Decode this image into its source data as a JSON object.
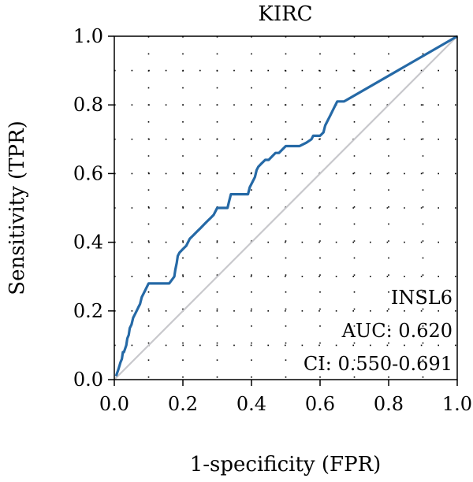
{
  "chart_data": {
    "type": "line",
    "title": "KIRC",
    "xlabel": "1-specificity (FPR)",
    "ylabel": "Sensitivity (TPR)",
    "xlim": [
      0,
      1
    ],
    "ylim": [
      0,
      1
    ],
    "xticks": [
      "0.0",
      "0.2",
      "0.4",
      "0.6",
      "0.8",
      "1.0"
    ],
    "yticks": [
      "0.0",
      "0.2",
      "0.4",
      "0.6",
      "0.8",
      "1.0"
    ],
    "grid": "dotted",
    "annotations": [
      "INSL6",
      "AUC: 0.620",
      "CI: 0.550-0.691"
    ],
    "colors": {
      "roc": "#2569a6",
      "diagonal": "#c8c8cc"
    },
    "series": [
      {
        "x": [
          0.005,
          0.012,
          0.018,
          0.022,
          0.025,
          0.028,
          0.035,
          0.038,
          0.042,
          0.045,
          0.05,
          0.055,
          0.06,
          0.065,
          0.07,
          0.075,
          0.08,
          0.085,
          0.09,
          0.095,
          0.1,
          0.105,
          0.11,
          0.13,
          0.16,
          0.175,
          0.178,
          0.182,
          0.185,
          0.19,
          0.2,
          0.21,
          0.22,
          0.23,
          0.24,
          0.25,
          0.26,
          0.27,
          0.28,
          0.29,
          0.3,
          0.31,
          0.33,
          0.335,
          0.34,
          0.35,
          0.37,
          0.39,
          0.395,
          0.4,
          0.41,
          0.415,
          0.42,
          0.43,
          0.44,
          0.45,
          0.46,
          0.47,
          0.48,
          0.49,
          0.5,
          0.52,
          0.54,
          0.56,
          0.575,
          0.58,
          0.6,
          0.61,
          0.615,
          0.62,
          0.63,
          0.64,
          0.645,
          0.65,
          0.67,
          1.0
        ],
        "y": [
          0.01,
          0.03,
          0.05,
          0.06,
          0.08,
          0.08,
          0.1,
          0.12,
          0.13,
          0.15,
          0.16,
          0.18,
          0.19,
          0.2,
          0.21,
          0.22,
          0.24,
          0.25,
          0.26,
          0.27,
          0.28,
          0.28,
          0.28,
          0.28,
          0.28,
          0.3,
          0.32,
          0.34,
          0.36,
          0.37,
          0.38,
          0.39,
          0.41,
          0.42,
          0.43,
          0.44,
          0.45,
          0.46,
          0.47,
          0.48,
          0.5,
          0.5,
          0.5,
          0.52,
          0.54,
          0.54,
          0.54,
          0.54,
          0.56,
          0.57,
          0.59,
          0.61,
          0.62,
          0.63,
          0.64,
          0.64,
          0.65,
          0.66,
          0.66,
          0.67,
          0.68,
          0.68,
          0.68,
          0.69,
          0.7,
          0.71,
          0.71,
          0.72,
          0.74,
          0.75,
          0.77,
          0.79,
          0.8,
          0.81,
          0.81,
          1.0
        ]
      }
    ]
  }
}
